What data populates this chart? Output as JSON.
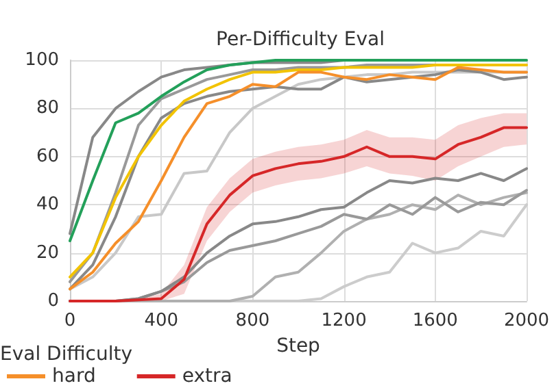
{
  "chart_data": {
    "type": "line",
    "title": "Per-Difficulty Eval",
    "xlabel": "Step",
    "legend_title": "Eval Difficulty",
    "legend": "bottom",
    "grid": true,
    "marker": "none",
    "line_style": "solid",
    "x": [
      0,
      100,
      200,
      300,
      400,
      500,
      600,
      700,
      800,
      900,
      1000,
      1100,
      1200,
      1300,
      1400,
      1500,
      1600,
      1700,
      1800,
      1900,
      2000
    ],
    "xlim": [
      0,
      2000
    ],
    "xticks": [
      0,
      400,
      800,
      1200,
      1600,
      2000
    ],
    "ylim": [
      0,
      100
    ],
    "yticks": [
      0,
      20,
      40,
      60,
      80,
      100
    ],
    "series": [
      {
        "color": "#c8c8c8",
        "values": [
          5,
          10,
          20,
          35,
          36,
          53,
          54,
          70,
          80,
          85,
          90,
          92,
          93,
          94,
          94,
          95,
          95,
          95,
          95,
          95,
          95
        ]
      },
      {
        "color": "#cccccc",
        "values": [
          0,
          0,
          0,
          0,
          0,
          0,
          0,
          0,
          0,
          0,
          0,
          1,
          6,
          10,
          12,
          24,
          20,
          22,
          29,
          27,
          40
        ]
      },
      {
        "color": "#b0b0b0",
        "values": [
          0,
          0,
          0,
          0,
          0,
          0,
          0,
          0,
          2,
          10,
          12,
          20,
          29,
          34,
          36,
          40,
          38,
          44,
          40,
          43,
          45
        ]
      },
      {
        "color": "#999999",
        "values": [
          0,
          0,
          0,
          1,
          4,
          8,
          16,
          21,
          23,
          25,
          28,
          31,
          36,
          34,
          40,
          36,
          43,
          37,
          41,
          40,
          46
        ]
      },
      {
        "color": "#888888",
        "values": [
          0,
          0,
          0,
          1,
          4,
          10,
          20,
          27,
          32,
          33,
          35,
          38,
          39,
          45,
          50,
          49,
          51,
          50,
          53,
          50,
          55
        ]
      },
      {
        "color": "#888888",
        "values": [
          5,
          15,
          35,
          60,
          76,
          82,
          85,
          87,
          88,
          89,
          88,
          88,
          93,
          91,
          92,
          93,
          94,
          96,
          95,
          92,
          93
        ]
      },
      {
        "color": "#999999",
        "values": [
          8,
          20,
          45,
          73,
          84,
          88,
          92,
          94,
          96,
          96,
          97,
          97,
          97,
          98,
          98,
          98,
          98,
          98,
          98,
          null,
          null
        ]
      },
      {
        "color": "#888888",
        "values": [
          28,
          68,
          80,
          87,
          93,
          96,
          97,
          98,
          99,
          99,
          99,
          99,
          100,
          100,
          100,
          100,
          100,
          null,
          null,
          null,
          null
        ]
      },
      {
        "color": "#23a05a",
        "values": [
          25,
          50,
          74,
          78,
          85,
          91,
          96,
          98,
          99,
          100,
          100,
          100,
          100,
          100,
          100,
          100,
          100,
          100,
          100,
          100,
          100
        ]
      },
      {
        "color": "#f2c300",
        "values": [
          10,
          20,
          43,
          60,
          73,
          83,
          88,
          92,
          95,
          95,
          96,
          96,
          97,
          97,
          97,
          97,
          98,
          98,
          98,
          98,
          98
        ]
      },
      {
        "name": "hard",
        "color": "#f58f2a",
        "values": [
          5,
          12,
          24,
          33,
          50,
          68,
          82,
          85,
          90,
          89,
          95,
          95,
          93,
          92,
          94,
          93,
          92,
          97,
          96,
          95,
          95
        ]
      },
      {
        "name": "extra",
        "color": "#d62728",
        "values": [
          0,
          0,
          0,
          0.5,
          1,
          9,
          32,
          44,
          52,
          55,
          57,
          58,
          60,
          64,
          60,
          60,
          59,
          65,
          68,
          72,
          72
        ],
        "lower": [
          0,
          0,
          0,
          0,
          0,
          3,
          25,
          37,
          45,
          48,
          50,
          51,
          53,
          56,
          53,
          52,
          50,
          56,
          60,
          64,
          65
        ],
        "upper": [
          0,
          0,
          0,
          1,
          3,
          15,
          39,
          51,
          59,
          62,
          64,
          65,
          67,
          71,
          68,
          68,
          67,
          73,
          76,
          78,
          78
        ]
      }
    ]
  }
}
